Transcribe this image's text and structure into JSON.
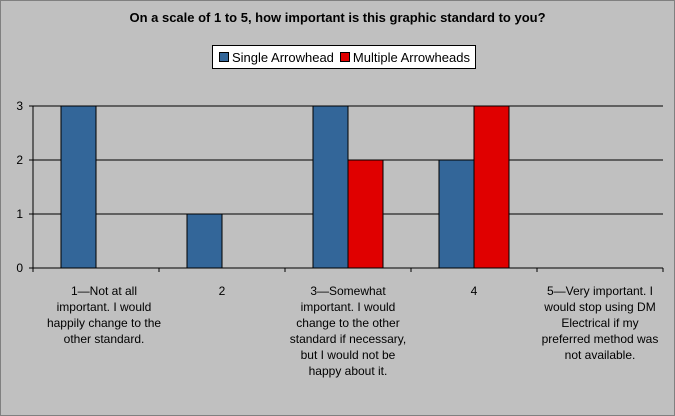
{
  "chart_data": {
    "type": "bar",
    "title": "On a scale of 1 to 5, how important is this graphic standard to you?",
    "categories": [
      "1—Not at all important. I would happily change to the other standard.",
      "2",
      "3—Somewhat important. I would change to the other standard if necessary, but I would not be happy about it.",
      "4",
      "5—Very important. I would stop using DM Electrical if my preferred method was not available."
    ],
    "series": [
      {
        "name": "Single Arrowhead",
        "values": [
          3,
          1,
          3,
          2,
          0
        ],
        "color": "#336699"
      },
      {
        "name": "Multiple Arrowheads",
        "values": [
          0,
          0,
          2,
          3,
          0
        ],
        "color": "#e00000"
      }
    ],
    "ylim": [
      0,
      3
    ],
    "yticks": [
      0,
      1,
      2,
      3
    ],
    "grid": true,
    "legend_position": "top-center",
    "xlabel": "",
    "ylabel": ""
  }
}
